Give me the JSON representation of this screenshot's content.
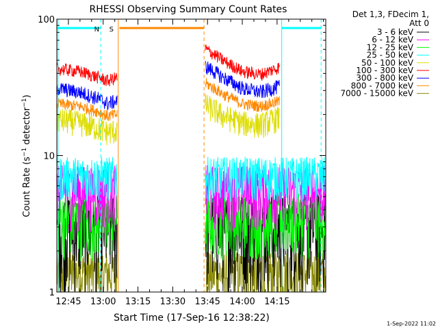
{
  "chart_data": {
    "type": "line",
    "title": "RHESSI Observing Summary Count Rates",
    "xlabel": "Start Time (17-Sep-16 12:38:22)",
    "ylabel": "Count Rate (s⁻¹ detector⁻¹)",
    "ylabel_parts": {
      "base": "Count Rate (s",
      "sup1": "−1",
      "mid": " detector",
      "sup2": "−1",
      "end": ")"
    },
    "yscale": "log",
    "ylim": [
      1,
      100
    ],
    "y_ticks": [
      {
        "value": 1,
        "label": "1"
      },
      {
        "value": 10,
        "label": "10"
      },
      {
        "value": 100,
        "label": "100"
      }
    ],
    "xlim_minutes": [
      40,
      156
    ],
    "x_ticks": [
      {
        "minute": 45,
        "label": "12:45"
      },
      {
        "minute": 60,
        "label": "13:00"
      },
      {
        "minute": 75,
        "label": "13:15"
      },
      {
        "minute": 90,
        "label": "13:30"
      },
      {
        "minute": 105,
        "label": "13:45"
      },
      {
        "minute": 120,
        "label": "14:00"
      },
      {
        "minute": 135,
        "label": "14:15"
      }
    ],
    "legend_header": [
      "Det 1,3, FDecim 1,",
      "Att 0"
    ],
    "legend_position": "right",
    "series": [
      {
        "name": "3 - 6 keV",
        "color": "#000000",
        "segments": [
          [
            [
              40,
              2.0
            ],
            [
              66,
              2.0
            ]
          ],
          [
            [
              104,
              2.0
            ],
            [
              156,
              2.0
            ]
          ]
        ]
      },
      {
        "name": "6 - 12 keV",
        "color": "#ff00ff",
        "segments": [
          [
            [
              40,
              5.0
            ],
            [
              66,
              5.0
            ]
          ],
          [
            [
              104,
              5.0
            ],
            [
              156,
              5.0
            ]
          ]
        ]
      },
      {
        "name": "12 - 25 keV",
        "color": "#00ff00",
        "segments": [
          [
            [
              40,
              4.2
            ],
            [
              66,
              4.2
            ]
          ],
          [
            [
              104,
              4.2
            ],
            [
              156,
              4.2
            ]
          ]
        ]
      },
      {
        "name": "25 - 50 keV",
        "color": "#00ffff",
        "segments": [
          [
            [
              40,
              7.0
            ],
            [
              66,
              7.0
            ]
          ],
          [
            [
              104,
              7.0
            ],
            [
              156,
              7.0
            ]
          ]
        ]
      },
      {
        "name": "50 - 100 keV",
        "color": "#dddd00",
        "segments": [
          [
            [
              40,
              18
            ],
            [
              50,
              17
            ],
            [
              58,
              15.5
            ],
            [
              62,
              14.5
            ],
            [
              66,
              15
            ]
          ],
          [
            [
              104,
              23
            ],
            [
              112,
              19
            ],
            [
              120,
              17
            ],
            [
              128,
              16.5
            ],
            [
              136,
              18.5
            ]
          ]
        ]
      },
      {
        "name": "100 - 300 keV",
        "color": "#ff0000",
        "segments": [
          [
            [
              40,
              43
            ],
            [
              50,
              41
            ],
            [
              58,
              37
            ],
            [
              62,
              35
            ],
            [
              66,
              37
            ]
          ],
          [
            [
              104,
              60
            ],
            [
              112,
              49
            ],
            [
              120,
              41
            ],
            [
              128,
              39
            ],
            [
              136,
              44
            ]
          ]
        ]
      },
      {
        "name": "300 - 800 keV",
        "color": "#0000ff",
        "segments": [
          [
            [
              40,
              31
            ],
            [
              50,
              29
            ],
            [
              58,
              26
            ],
            [
              62,
              24
            ],
            [
              66,
              25
            ]
          ],
          [
            [
              104,
              45
            ],
            [
              112,
              37
            ],
            [
              120,
              31
            ],
            [
              128,
              29
            ],
            [
              136,
              32
            ]
          ]
        ]
      },
      {
        "name": "800 - 7000 keV",
        "color": "#ff8800",
        "segments": [
          [
            [
              40,
              24
            ],
            [
              50,
              23
            ],
            [
              58,
              21
            ],
            [
              62,
              19.5
            ],
            [
              66,
              20
            ]
          ],
          [
            [
              104,
              34
            ],
            [
              112,
              28
            ],
            [
              120,
              24
            ],
            [
              128,
              23
            ],
            [
              136,
              25
            ]
          ]
        ]
      },
      {
        "name": "7000 - 15000 keV",
        "color": "#888800",
        "segments": [
          [
            [
              40,
              1.5
            ],
            [
              66,
              1.5
            ]
          ],
          [
            [
              104,
              1.5
            ],
            [
              156,
              1.5
            ]
          ]
        ]
      }
    ],
    "annotations": [
      {
        "label": "N",
        "color": "#00ffff",
        "bars": [
          [
            40,
            59
          ],
          [
            137,
            154
          ]
        ],
        "vlines": [
          {
            "minute": 40.5,
            "style": "solid"
          },
          {
            "minute": 59,
            "style": "dashed"
          },
          {
            "minute": 137,
            "style": "solid"
          },
          {
            "minute": 154,
            "style": "dashed"
          }
        ]
      },
      {
        "label": "S",
        "color": "#ff8800",
        "bars": [
          [
            67,
            103.5
          ]
        ],
        "vlines": [
          {
            "minute": 66.5,
            "style": "solid"
          },
          {
            "minute": 103.5,
            "style": "dashed"
          }
        ]
      }
    ],
    "footer": "1-Sep-2022 11:02"
  }
}
